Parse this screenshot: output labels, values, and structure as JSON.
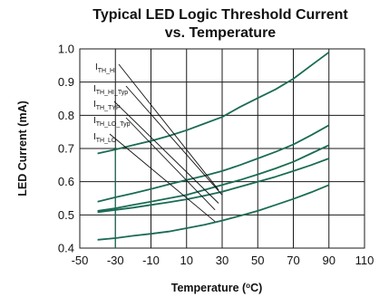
{
  "chart_data": {
    "type": "line",
    "title": "Typical LED Logic Threshold Current",
    "subtitle": "vs. Temperature",
    "xlabel": "Temperature (ºC)",
    "xlabel_main": "Temperature (",
    "xlabel_sup": "o",
    "xlabel_end": "C)",
    "ylabel": "LED Current (mA)",
    "xlim": [
      -50,
      110
    ],
    "ylim": [
      0.4,
      1.0
    ],
    "xticks": [
      -50,
      -30,
      -10,
      10,
      30,
      50,
      70,
      90,
      110
    ],
    "yticks": [
      0.4,
      0.5,
      0.6,
      0.7,
      0.8,
      0.9,
      1.0
    ],
    "xtick_labels": [
      "-50",
      "-30",
      "-10",
      "10",
      "30",
      "50",
      "70",
      "90",
      "110"
    ],
    "ytick_labels": [
      "0.4",
      "0.5",
      "0.6",
      "0.7",
      "0.8",
      "0.9",
      "1.0"
    ],
    "grid": true,
    "line_color": "#1a6b55",
    "grid_color": "#1a1a1a",
    "series": [
      {
        "name": "I_TH_HI",
        "x": [
          -40,
          -30,
          -20,
          -10,
          0,
          10,
          20,
          30,
          40,
          50,
          60,
          70,
          80,
          90
        ],
        "values": [
          0.685,
          0.697,
          0.71,
          0.723,
          0.738,
          0.755,
          0.775,
          0.795,
          0.825,
          0.852,
          0.878,
          0.91,
          0.95,
          0.99
        ]
      },
      {
        "name": "I_TH_HI_Typ",
        "x": [
          -40,
          -30,
          -20,
          -10,
          0,
          10,
          20,
          30,
          40,
          50,
          60,
          70,
          80,
          90
        ],
        "values": [
          0.54,
          0.553,
          0.565,
          0.578,
          0.592,
          0.605,
          0.618,
          0.632,
          0.65,
          0.67,
          0.69,
          0.712,
          0.74,
          0.77
        ]
      },
      {
        "name": "I_TH_TYP",
        "x": [
          -40,
          -30,
          -20,
          -10,
          0,
          10,
          20,
          30,
          40,
          50,
          60,
          70,
          80,
          90
        ],
        "values": [
          0.512,
          0.52,
          0.53,
          0.54,
          0.55,
          0.56,
          0.575,
          0.59,
          0.605,
          0.622,
          0.64,
          0.66,
          0.685,
          0.71
        ]
      },
      {
        "name": "I_TH_LO_Typ",
        "x": [
          -40,
          -30,
          -20,
          -10,
          0,
          10,
          20,
          30,
          40,
          50,
          60,
          70,
          80,
          90
        ],
        "values": [
          0.508,
          0.515,
          0.522,
          0.53,
          0.538,
          0.547,
          0.558,
          0.57,
          0.585,
          0.6,
          0.615,
          0.632,
          0.65,
          0.67
        ]
      },
      {
        "name": "I_TH_LO",
        "x": [
          -40,
          -30,
          -20,
          -10,
          0,
          10,
          20,
          30,
          40,
          50,
          60,
          70,
          80,
          90
        ],
        "values": [
          0.425,
          0.43,
          0.437,
          0.443,
          0.45,
          0.46,
          0.47,
          0.483,
          0.497,
          0.512,
          0.53,
          0.548,
          0.568,
          0.59
        ]
      }
    ],
    "marker_x": -30,
    "labels": [
      {
        "series": "I_TH_HI",
        "main": "I",
        "sub": "TH_HI",
        "target": [
          28,
          0.575
        ]
      },
      {
        "series": "I_TH_HI_Typ",
        "main": "I",
        "sub": "TH_HI_Typ",
        "target": [
          30,
          0.56
        ]
      },
      {
        "series": "I_TH_TYP",
        "main": "I",
        "sub": "TH_TYP",
        "target": [
          28,
          0.535
        ]
      },
      {
        "series": "I_TH_LO_Typ",
        "main": "I",
        "sub": "TH_LO_Typ",
        "target": [
          26,
          0.515
        ]
      },
      {
        "series": "I_TH_LO",
        "main": "I",
        "sub": "TH_LO",
        "target": [
          26,
          0.48
        ]
      }
    ]
  }
}
